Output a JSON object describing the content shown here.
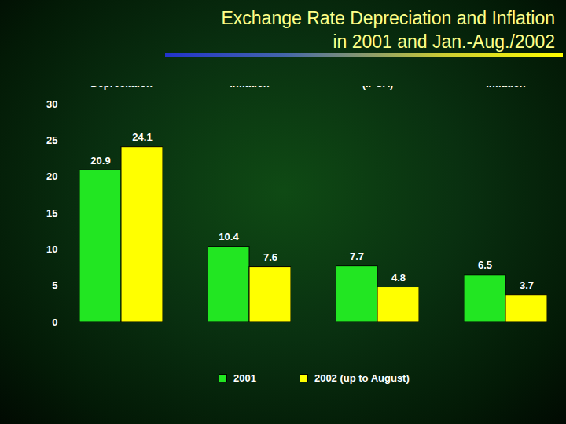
{
  "chart_data": {
    "type": "bar",
    "title": "Exchange Rate Depreciation and Inflation\nin 2001 and Jan.-Aug./2002",
    "categories": [
      "Exchange Rate\nDepreciation",
      "Administered Prices\nInflation",
      "Inflation Rate\n(IPCA)",
      "Market Prices\nInflation"
    ],
    "series": [
      {
        "name": "2001",
        "color": "#22e622",
        "values": [
          20.9,
          10.4,
          7.7,
          6.5
        ]
      },
      {
        "name": "2002 (up to August)",
        "color": "#ffff00",
        "values": [
          24.1,
          7.6,
          4.8,
          3.7
        ]
      }
    ],
    "ylim": [
      0,
      30
    ],
    "yticks": [
      0,
      5,
      10,
      15,
      20,
      25,
      30
    ],
    "grid": false,
    "legend": "bottom",
    "data_labels": true
  }
}
